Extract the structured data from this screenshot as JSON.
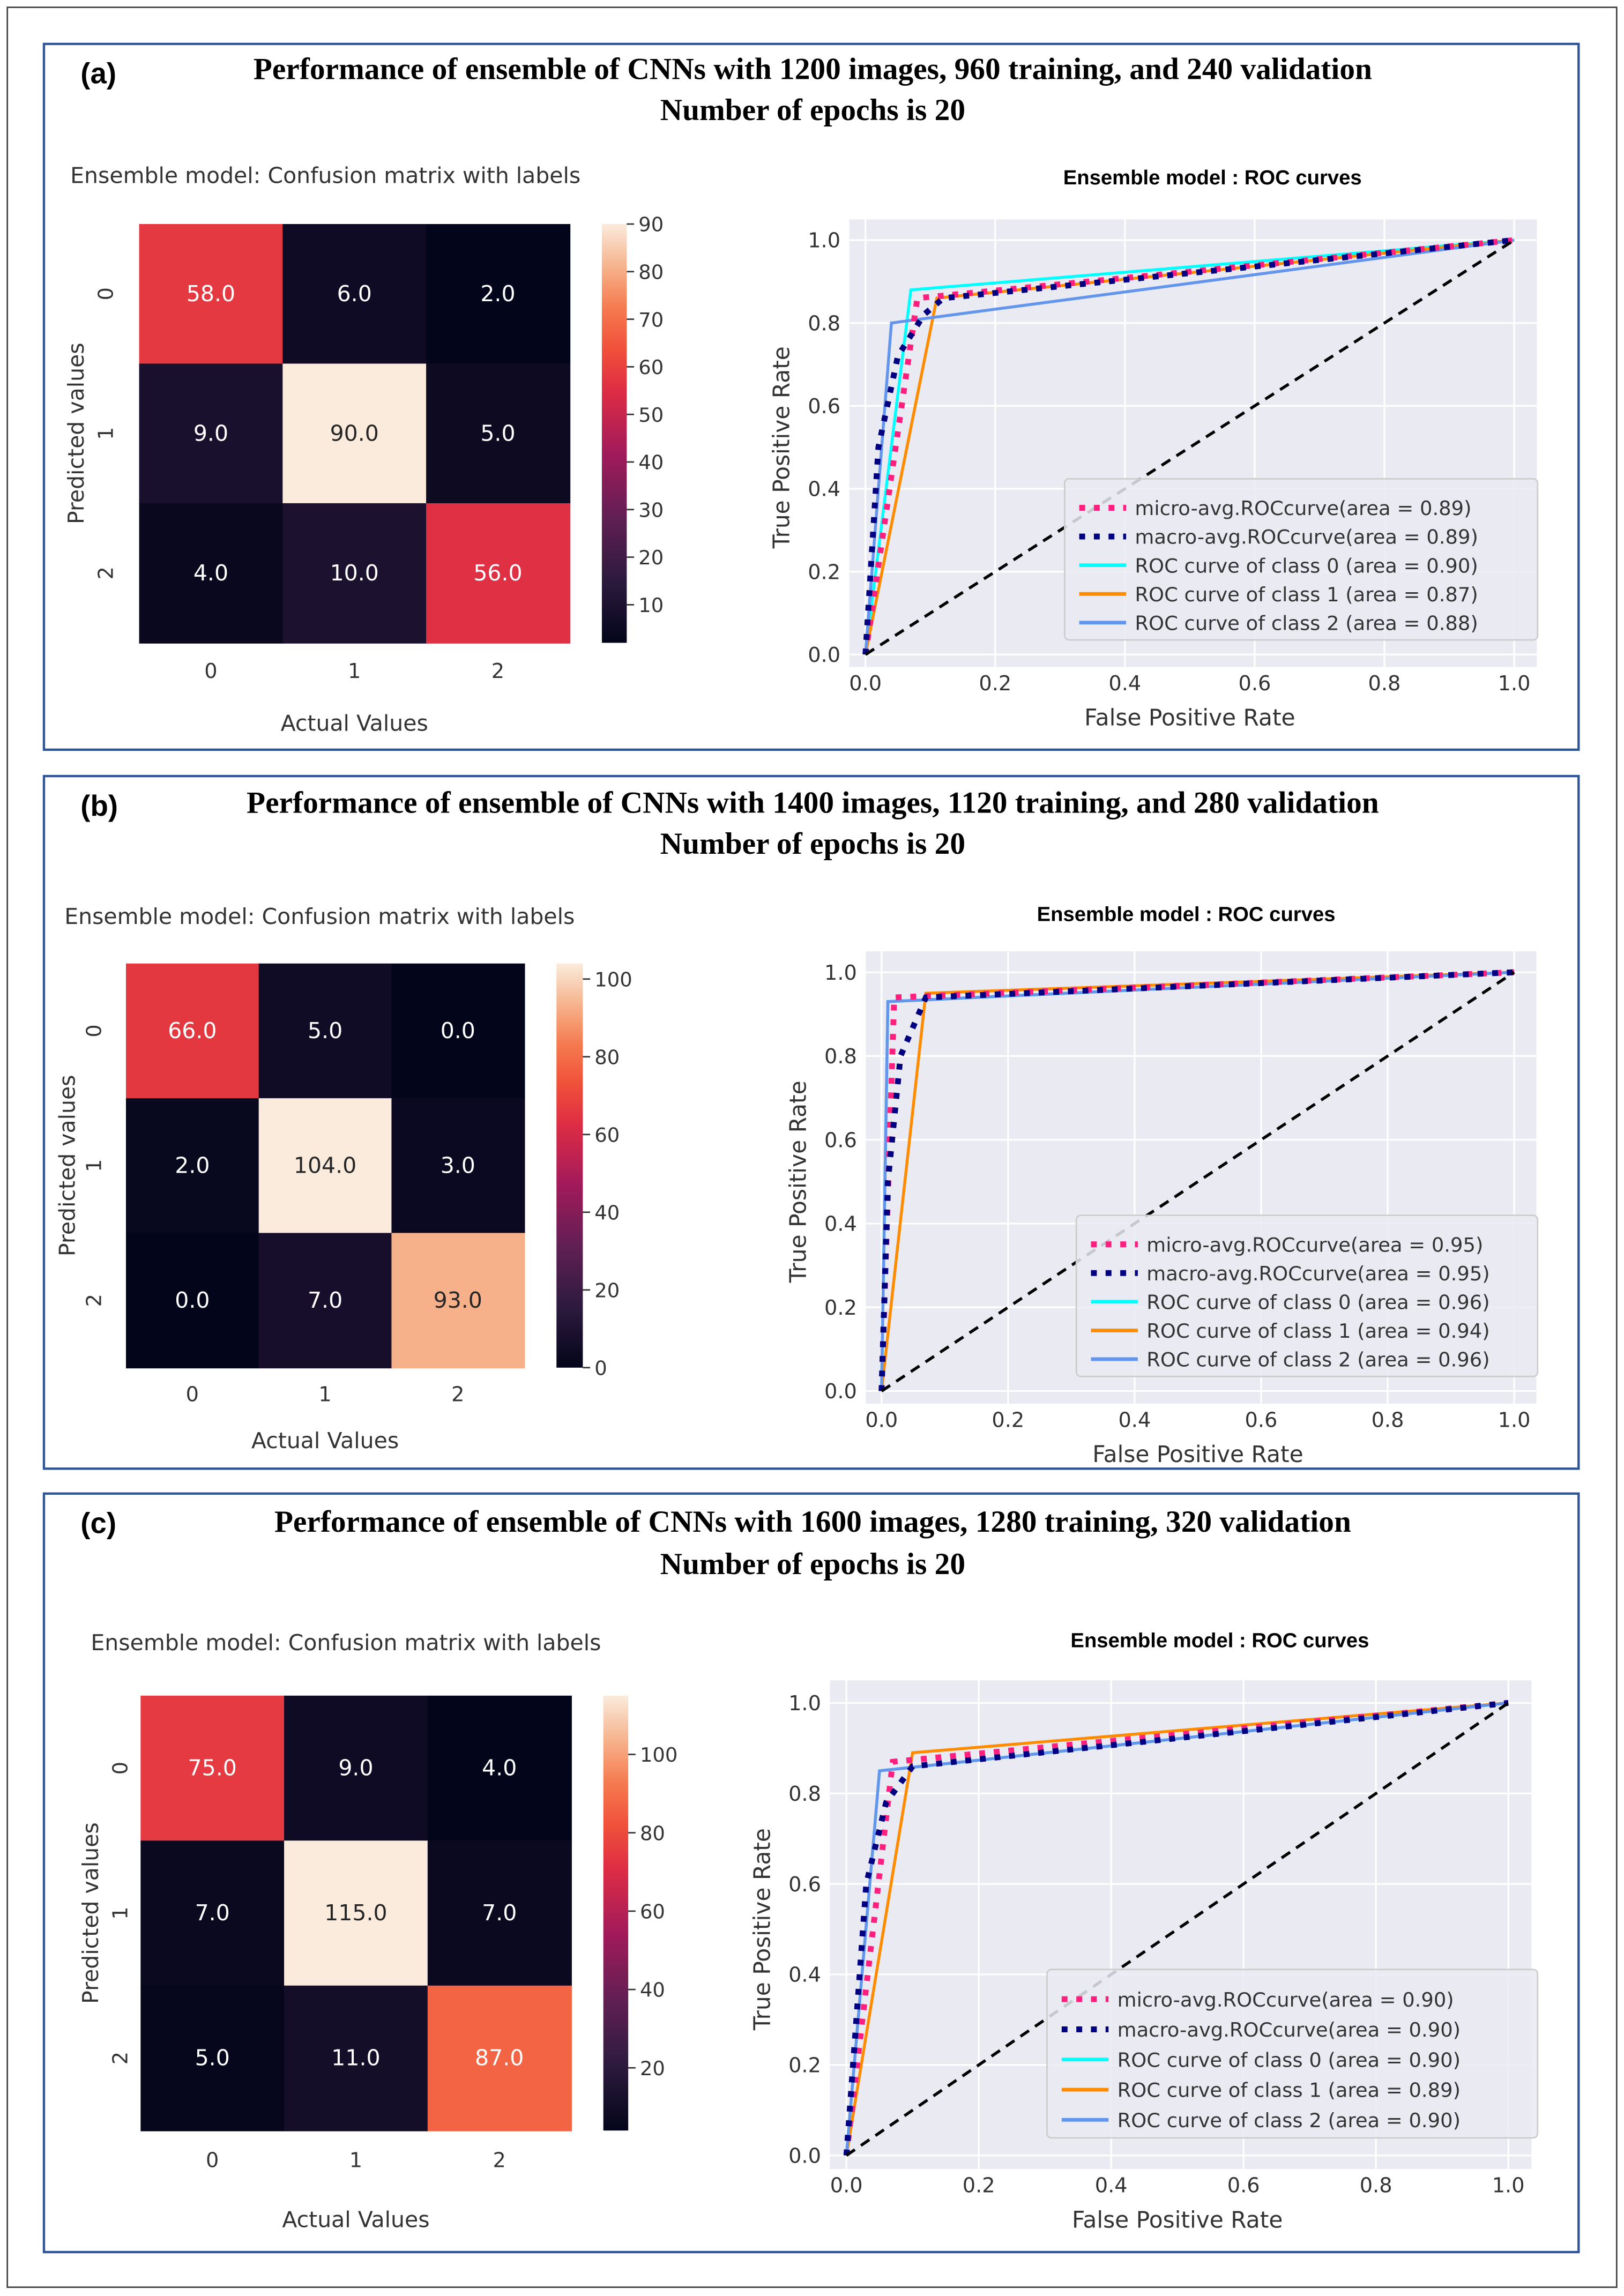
{
  "panels": [
    {
      "label": "(a)",
      "title_lines": [
        "Performance of ensemble of CNNs with 1200 images, 960 training, and 240 validation",
        "Number of epochs is 20"
      ]
    },
    {
      "label": "(b)",
      "title_lines": [
        "Performance of ensemble of CNNs with 1400 images, 1120 training, and 280 validation",
        "Number of epochs is 20"
      ]
    },
    {
      "label": "(c)",
      "title_lines": [
        "Performance of ensemble of CNNs with 1600 images, 1280 training, 320 validation",
        "Number of epochs is 20"
      ]
    }
  ],
  "colors": {
    "panel_border": "#2f5597",
    "plot_bg": "#eaeaf2",
    "grid": "#ffffff"
  },
  "chart_data": [
    {
      "type": "heatmap",
      "panel": "(a)",
      "title": "Ensemble model: Confusion matrix with labels",
      "xlabel": "Actual Values",
      "ylabel": "Predicted values",
      "x_tick_labels": [
        "0",
        "1",
        "2"
      ],
      "y_tick_labels": [
        "0",
        "1",
        "2"
      ],
      "matrix": [
        [
          58.0,
          6.0,
          2.0
        ],
        [
          9.0,
          90.0,
          5.0
        ],
        [
          4.0,
          10.0,
          56.0
        ]
      ],
      "cell_labels": [
        [
          "58.0",
          "6.0",
          "2.0"
        ],
        [
          "9.0",
          "90.0",
          "5.0"
        ],
        [
          "4.0",
          "10.0",
          "56.0"
        ]
      ],
      "colorbar": {
        "vmin": 2,
        "vmax": 90,
        "ticks": [
          "10",
          "20",
          "30",
          "40",
          "50",
          "60",
          "70",
          "80",
          "90"
        ]
      }
    },
    {
      "type": "line",
      "panel": "(a)",
      "title": "Ensemble model : ROC curves",
      "xlabel": "False Positive Rate",
      "ylabel": "True Positive Rate",
      "xlim": [
        0,
        1
      ],
      "ylim": [
        0,
        1
      ],
      "x_ticks": [
        "0.0",
        "0.2",
        "0.4",
        "0.6",
        "0.8",
        "1.0"
      ],
      "y_ticks": [
        "0.0",
        "0.2",
        "0.4",
        "0.6",
        "0.8",
        "1.0"
      ],
      "legend_position": "lower-right",
      "grid": true,
      "series": [
        {
          "name": "micro-avg.ROCcurve(area = 0.89)",
          "color": "#ff1f7f",
          "style": "dotted",
          "points": [
            [
              0,
              0
            ],
            [
              0.08,
              0.86
            ],
            [
              1,
              1
            ]
          ]
        },
        {
          "name": "macro-avg.ROCcurve(area = 0.89)",
          "color": "#000080",
          "style": "dotted",
          "points": [
            [
              0,
              0
            ],
            [
              0.02,
              0.5
            ],
            [
              0.05,
              0.72
            ],
            [
              0.09,
              0.82
            ],
            [
              0.12,
              0.86
            ],
            [
              1,
              1
            ]
          ]
        },
        {
          "name": "ROC curve of class 0 (area = 0.90)",
          "color": "#00ffff",
          "style": "solid",
          "points": [
            [
              0,
              0
            ],
            [
              0.07,
              0.88
            ],
            [
              1,
              1
            ]
          ]
        },
        {
          "name": "ROC curve of class 1 (area = 0.87)",
          "color": "#ff8c00",
          "style": "solid",
          "points": [
            [
              0,
              0
            ],
            [
              0.11,
              0.86
            ],
            [
              1,
              1
            ]
          ]
        },
        {
          "name": "ROC curve of class 2 (area = 0.88)",
          "color": "#6495ed",
          "style": "solid",
          "points": [
            [
              0,
              0
            ],
            [
              0.04,
              0.8
            ],
            [
              1,
              1
            ]
          ]
        }
      ],
      "diagonal": {
        "color": "#000000",
        "style": "dashed",
        "points": [
          [
            0,
            0
          ],
          [
            1,
            1
          ]
        ]
      }
    },
    {
      "type": "heatmap",
      "panel": "(b)",
      "title": "Ensemble model: Confusion matrix with labels",
      "xlabel": "Actual Values",
      "ylabel": "Predicted values",
      "x_tick_labels": [
        "0",
        "1",
        "2"
      ],
      "y_tick_labels": [
        "0",
        "1",
        "2"
      ],
      "matrix": [
        [
          66.0,
          5.0,
          0.0
        ],
        [
          2.0,
          104.0,
          3.0
        ],
        [
          0.0,
          7.0,
          93.0
        ]
      ],
      "cell_labels": [
        [
          "66.0",
          "5.0",
          "0.0"
        ],
        [
          "2.0",
          "104.0",
          "3.0"
        ],
        [
          "0.0",
          "7.0",
          "93.0"
        ]
      ],
      "colorbar": {
        "vmin": 0,
        "vmax": 104,
        "ticks": [
          "0",
          "20",
          "40",
          "60",
          "80",
          "100"
        ]
      }
    },
    {
      "type": "line",
      "panel": "(b)",
      "title": "Ensemble model : ROC curves",
      "xlabel": "False Positive Rate",
      "ylabel": "True Positive Rate",
      "xlim": [
        0,
        1
      ],
      "ylim": [
        0,
        1
      ],
      "x_ticks": [
        "0.0",
        "0.2",
        "0.4",
        "0.6",
        "0.8",
        "1.0"
      ],
      "y_ticks": [
        "0.0",
        "0.2",
        "0.4",
        "0.6",
        "0.8",
        "1.0"
      ],
      "legend_position": "lower-right",
      "grid": true,
      "series": [
        {
          "name": "micro-avg.ROCcurve(area = 0.95)",
          "color": "#ff1f7f",
          "style": "dotted",
          "points": [
            [
              0,
              0
            ],
            [
              0.02,
              0.94
            ],
            [
              1,
              1
            ]
          ]
        },
        {
          "name": "macro-avg.ROCcurve(area = 0.95)",
          "color": "#000080",
          "style": "dotted",
          "points": [
            [
              0,
              0
            ],
            [
              0.01,
              0.5
            ],
            [
              0.03,
              0.8
            ],
            [
              0.07,
              0.94
            ],
            [
              1,
              1
            ]
          ]
        },
        {
          "name": "ROC curve of class 0 (area = 0.96)",
          "color": "#00ffff",
          "style": "solid",
          "points": [
            [
              0,
              0
            ],
            [
              0.01,
              0.93
            ],
            [
              1,
              1
            ]
          ]
        },
        {
          "name": "ROC curve of class 1 (area = 0.94)",
          "color": "#ff8c00",
          "style": "solid",
          "points": [
            [
              0,
              0
            ],
            [
              0.07,
              0.95
            ],
            [
              1,
              1
            ]
          ]
        },
        {
          "name": "ROC curve of class 2 (area = 0.96)",
          "color": "#6495ed",
          "style": "solid",
          "points": [
            [
              0,
              0
            ],
            [
              0.01,
              0.93
            ],
            [
              1,
              1
            ]
          ]
        }
      ],
      "diagonal": {
        "color": "#000000",
        "style": "dashed",
        "points": [
          [
            0,
            0
          ],
          [
            1,
            1
          ]
        ]
      }
    },
    {
      "type": "heatmap",
      "panel": "(c)",
      "title": "Ensemble model: Confusion matrix with labels",
      "xlabel": "Actual Values",
      "ylabel": "Predicted values",
      "x_tick_labels": [
        "0",
        "1",
        "2"
      ],
      "y_tick_labels": [
        "0",
        "1",
        "2"
      ],
      "matrix": [
        [
          75.0,
          9.0,
          4.0
        ],
        [
          7.0,
          115.0,
          7.0
        ],
        [
          5.0,
          11.0,
          87.0
        ]
      ],
      "cell_labels": [
        [
          "75.0",
          "9.0",
          "4.0"
        ],
        [
          "7.0",
          "115.0",
          "7.0"
        ],
        [
          "5.0",
          "11.0",
          "87.0"
        ]
      ],
      "colorbar": {
        "vmin": 4,
        "vmax": 115,
        "ticks": [
          "20",
          "40",
          "60",
          "80",
          "100"
        ]
      }
    },
    {
      "type": "line",
      "panel": "(c)",
      "title": "Ensemble model : ROC curves",
      "xlabel": "False Positive Rate",
      "ylabel": "True Positive Rate",
      "xlim": [
        0,
        1
      ],
      "ylim": [
        0,
        1
      ],
      "x_ticks": [
        "0.0",
        "0.2",
        "0.4",
        "0.6",
        "0.8",
        "1.0"
      ],
      "y_ticks": [
        "0.0",
        "0.2",
        "0.4",
        "0.6",
        "0.8",
        "1.0"
      ],
      "legend_position": "lower-right",
      "grid": true,
      "series": [
        {
          "name": "micro-avg.ROCcurve(area = 0.90)",
          "color": "#ff1f7f",
          "style": "dotted",
          "points": [
            [
              0,
              0
            ],
            [
              0.07,
              0.87
            ],
            [
              1,
              1
            ]
          ]
        },
        {
          "name": "macro-avg.ROCcurve(area = 0.90)",
          "color": "#000080",
          "style": "dotted",
          "points": [
            [
              0,
              0
            ],
            [
              0.03,
              0.6
            ],
            [
              0.06,
              0.78
            ],
            [
              0.1,
              0.86
            ],
            [
              1,
              1
            ]
          ]
        },
        {
          "name": "ROC curve of class 0 (area = 0.90)",
          "color": "#00ffff",
          "style": "solid",
          "points": [
            [
              0,
              0
            ],
            [
              0.05,
              0.85
            ],
            [
              1,
              1
            ]
          ]
        },
        {
          "name": "ROC curve of class 1 (area = 0.89)",
          "color": "#ff8c00",
          "style": "solid",
          "points": [
            [
              0,
              0
            ],
            [
              0.1,
              0.89
            ],
            [
              1,
              1
            ]
          ]
        },
        {
          "name": "ROC curve of class 2 (area = 0.90)",
          "color": "#6495ed",
          "style": "solid",
          "points": [
            [
              0,
              0
            ],
            [
              0.05,
              0.85
            ],
            [
              1,
              1
            ]
          ]
        }
      ],
      "diagonal": {
        "color": "#000000",
        "style": "dashed",
        "points": [
          [
            0,
            0
          ],
          [
            1,
            1
          ]
        ]
      }
    }
  ]
}
